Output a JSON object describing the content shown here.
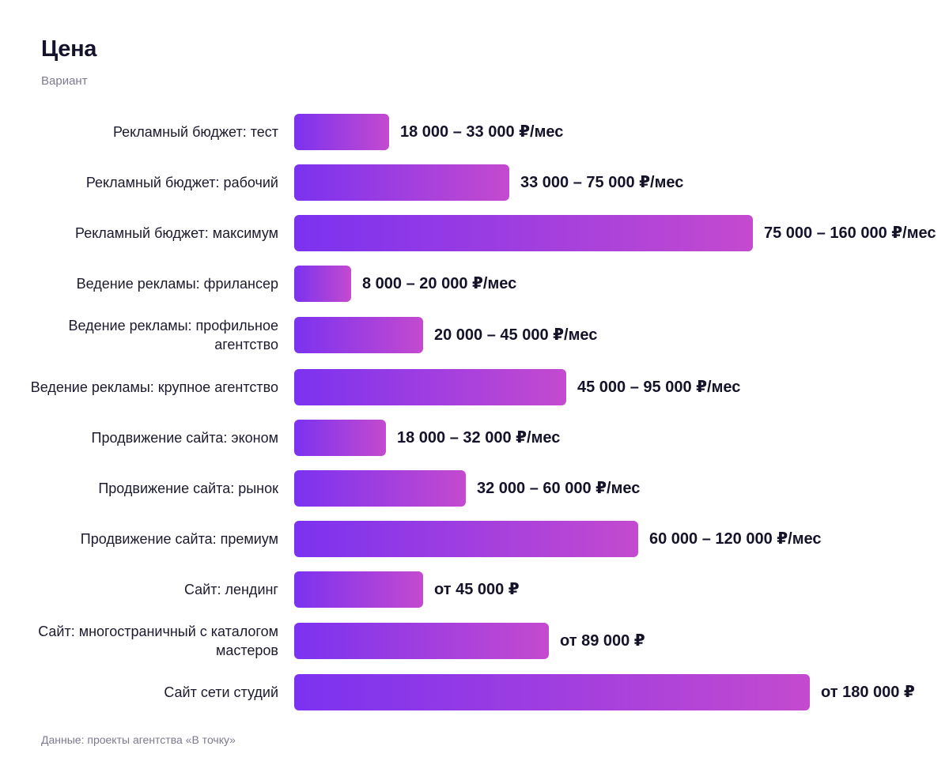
{
  "header": {
    "title": "Цена",
    "subtitle": "Вариант"
  },
  "footer": {
    "source": "Данные: проекты агентства «В точку»"
  },
  "colors": {
    "bar_start": "#7b32f0",
    "bar_end": "#c44acf"
  },
  "chart_data": {
    "type": "bar",
    "orientation": "horizontal",
    "title": "Цена",
    "subtitle": "Вариант",
    "grid": false,
    "legend": "none",
    "xlim": [
      0,
      180000
    ],
    "categories": [
      "Рекламный бюджет: тест",
      "Рекламный бюджет: рабочий",
      "Рекламный бюджет: максимум",
      "Ведение рекламы: фрилансер",
      "Ведение рекламы: профильное агентство",
      "Ведение рекламы: крупное агентство",
      "Продвижение сайта: эконом",
      "Продвижение сайта: рынок",
      "Продвижение сайта: премиум",
      "Сайт: лендинг",
      "Сайт: многостраничный с каталогом мастеров",
      "Сайт сети студий"
    ],
    "values": [
      33000,
      75000,
      160000,
      20000,
      45000,
      95000,
      32000,
      60000,
      120000,
      45000,
      89000,
      180000
    ],
    "data_labels": [
      "18 000 – 33 000 ₽/мес",
      "33 000 – 75 000 ₽/мес",
      "75 000 – 160 000 ₽/мес",
      "8 000 – 20 000 ₽/мес",
      "20 000 – 45 000 ₽/мес",
      "45 000 – 95 000 ₽/мес",
      "18 000 – 32 000 ₽/мес",
      "32 000 – 60 000 ₽/мес",
      "60 000 – 120 000 ₽/мес",
      "от 45 000 ₽",
      "от 89 000 ₽",
      "от 180 000 ₽"
    ],
    "source": "Данные: проекты агентства «В точку»"
  }
}
